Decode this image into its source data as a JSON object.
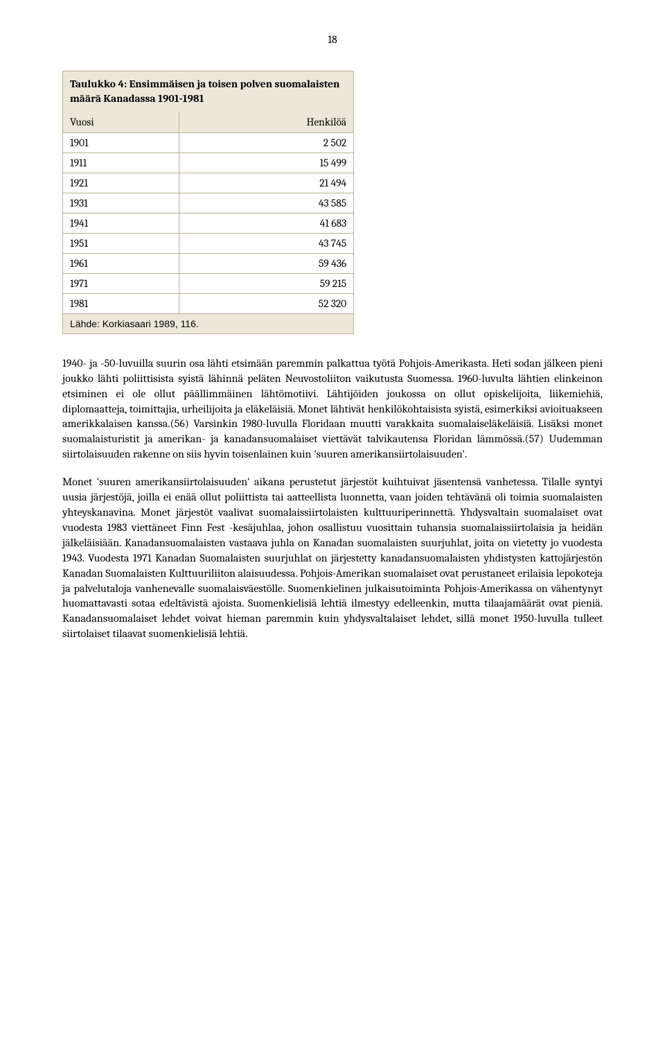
{
  "page_number": "18",
  "table": {
    "title": "Taulukko 4: Ensimmäisen ja toisen polven suomalaisten määrä Kanadassa 1901-1981",
    "columns": [
      "Vuosi",
      "Henkilöä"
    ],
    "rows": [
      [
        "1901",
        "2 502"
      ],
      [
        "1911",
        "15 499"
      ],
      [
        "1921",
        "21 494"
      ],
      [
        "1931",
        "43 585"
      ],
      [
        "1941",
        "41 683"
      ],
      [
        "1951",
        "43 745"
      ],
      [
        "1961",
        "59 436"
      ],
      [
        "1971",
        "59 215"
      ],
      [
        "1981",
        "52 320"
      ]
    ],
    "source": "Lähde: Korkiasaari 1989, 116.",
    "column_widths": [
      "40%",
      "60%"
    ],
    "bg_header": "#ece8d9",
    "border_color": "#b9b196",
    "font_size": 15.5
  },
  "paragraphs": [
    "1940- ja -50-luvuilla suurin osa lähti etsimään paremmin palkattua työtä Pohjois-Amerikasta. Heti sodan jälkeen pieni joukko lähti poliittisista syistä lähinnä peläten Neuvostoliiton vaikutusta Suomessa. 1960-luvulta lähtien elinkeinon etsiminen ei ole ollut päällimmäinen lähtömotiivi. Lähtijöiden joukossa on ollut opiskelijoita, liikemiehiä, diplomaatteja, toimittajia, urheilijoita ja eläkeläisiä. Monet lähtivät henkilökohtaisista syistä, esimerkiksi avioituakseen amerikkalaisen kanssa.(56) Varsinkin 1980-luvulla Floridaan muutti varakkaita suomalaiseläkeläisiä. Lisäksi monet suomalaisturistit ja amerikan- ja kanadansuomalaiset viettävät talvikautensa Floridan lämmössä.(57) Uudemman siirtolaisuuden rakenne on siis hyvin toisenlainen kuin 'suuren amerikansiirtolaisuuden'.",
    "Monet 'suuren amerikansiirtolaisuuden' aikana perustetut järjestöt kuihtuivat jäsentensä vanhetessa. Tilalle syntyi uusia järjestöjä, joilla ei enää ollut poliittista tai aatteellista luonnetta, vaan joiden tehtävänä oli toimia suomalaisten yhteyskanavina. Monet järjestöt vaalivat suomalaissiirtolaisten kulttuuriperinnettä. Yhdysvaltain suomalaiset ovat vuodesta 1983 viettäneet Finn Fest -kesäjuhlaa, johon osallistuu vuosittain tuhansia suomalaissiirtolaisia ja heidän jälkeläisiään. Kanadansuomalaisten vastaava juhla on Kanadan suomalaisten suurjuhlat, joita on vietetty jo vuodesta 1943. Vuodesta 1971 Kanadan Suomalaisten suurjuhlat on järjestetty kanadansuomalaisten yhdistysten kattojärjestön Kanadan Suomalaisten Kulttuuriliiton alaisuudessa. Pohjois-Amerikan suomalaiset ovat perustaneet erilaisia lepokoteja ja palvelutaloja vanhenevalle suomalaisväestölle. Suomenkielinen julkaisutoiminta Pohjois-Amerikassa on vähentynyt huomattavasti sotaa edeltävistä ajoista. Suomenkielisiä lehtiä ilmestyy edelleenkin, mutta tilaajamäärät ovat pieniä. Kanadansuomalaiset lehdet voivat hieman paremmin kuin yhdysvaltalaiset lehdet, sillä monet 1950-luvulla tulleet siirtolaiset tilaavat suomenkielisiä lehtiä."
  ],
  "styles": {
    "body_font_size": 16,
    "body_line_height": 1.37,
    "background_color": "#ffffff",
    "text_color": "#000000"
  }
}
